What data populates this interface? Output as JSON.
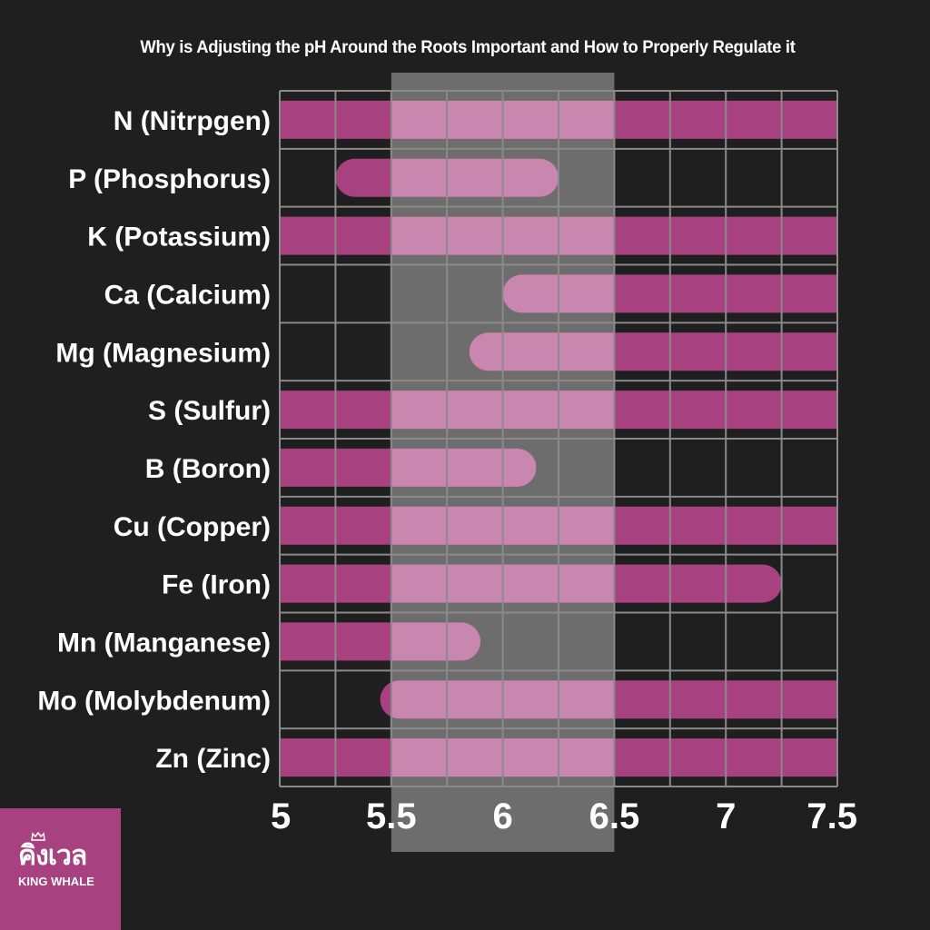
{
  "title": "Why is Adjusting the pH Around the Roots Important and How to Properly Regulate it",
  "brand": {
    "thai": "คิงเวล",
    "name": "KING WHALE",
    "logo_icon": "crown-icon"
  },
  "colors": {
    "background": "#1f1f1f",
    "bar_outside": "#a8417f",
    "bar_inside_optimal": "#c987b0",
    "optimal_band": "#6d6d6d",
    "grid": "#8a8a8a",
    "text": "#ffffff"
  },
  "chart_data": {
    "type": "bar",
    "orientation": "horizontal",
    "title": "Why is Adjusting the pH Around the Roots Important and How to Properly Regulate it",
    "xlim": [
      5,
      7.5
    ],
    "x_ticks": [
      "5",
      "5.5",
      "6",
      "6.5",
      "7",
      "7.5"
    ],
    "highlight_band": [
      5.5,
      6.5
    ],
    "grid": true,
    "categories": [
      "N (Nitrpgen)",
      "P (Phosphorus)",
      "K (Potassium)",
      "Ca (Calcium)",
      "Mg (Magnesium)",
      "S (Sulfur)",
      "B (Boron)",
      "Cu (Copper)",
      "Fe (Iron)",
      "Mn (Manganese)",
      "Mo (Molybdenum)",
      "Zn (Zinc)"
    ],
    "ranges": [
      [
        5,
        7.5
      ],
      [
        5.25,
        6.25
      ],
      [
        5,
        7.5
      ],
      [
        6.0,
        7.5
      ],
      [
        5.85,
        7.5
      ],
      [
        5,
        7.5
      ],
      [
        5,
        6.15
      ],
      [
        5,
        7.5
      ],
      [
        5,
        7.25
      ],
      [
        5,
        5.9
      ],
      [
        5.45,
        7.5
      ],
      [
        5,
        7.5
      ]
    ]
  }
}
